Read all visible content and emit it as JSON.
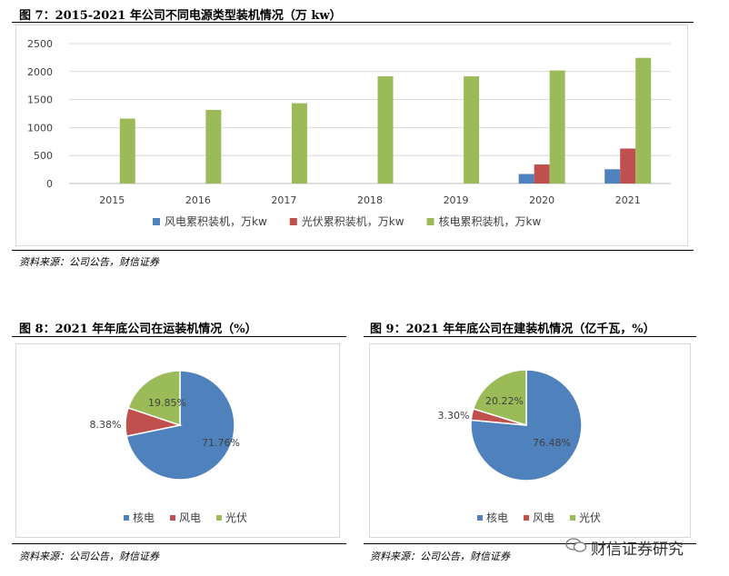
{
  "fig7": {
    "title": "图 7：2015-2021 年公司不同电源类型装机情况（万 kw）",
    "source": "资料来源：公司公告，财信证券"
  },
  "fig8": {
    "title": "图 8：2021 年年底公司在运装机情况（%）",
    "source": "资料来源：公司公告，财信证券"
  },
  "fig9": {
    "title": "图 9：2021 年年底公司在建装机情况（亿千瓦，%）",
    "source": "资料来源：公司公告，财信证券"
  },
  "watermark": "财信证券研究",
  "chart_data": [
    {
      "type": "bar",
      "categories": [
        "2015",
        "2016",
        "2017",
        "2018",
        "2019",
        "2020",
        "2021"
      ],
      "series": [
        {
          "name": "风电累积装机，万kw",
          "color": "#4f81bd",
          "values": [
            null,
            null,
            null,
            null,
            null,
            170,
            255
          ]
        },
        {
          "name": "光伏累积装机，万kw",
          "color": "#c0504d",
          "values": [
            null,
            null,
            null,
            null,
            null,
            340,
            625
          ]
        },
        {
          "name": "核电累积装机，万kw",
          "color": "#9bbb59",
          "values": [
            1160,
            1315,
            1435,
            1915,
            1915,
            2020,
            2245
          ]
        }
      ],
      "yticks": [
        0,
        500,
        1000,
        1500,
        2000,
        2500
      ],
      "ylim": [
        0,
        2500
      ],
      "grid": true,
      "legend_position": "bottom"
    },
    {
      "type": "pie",
      "labels": [
        "核电",
        "风电",
        "光伏"
      ],
      "values": [
        71.76,
        8.38,
        19.85
      ],
      "value_labels": [
        "71.76%",
        "8.38%",
        "19.85%"
      ],
      "colors": [
        "#4f81bd",
        "#c0504d",
        "#9bbb59"
      ],
      "legend_position": "bottom"
    },
    {
      "type": "pie",
      "labels": [
        "核电",
        "风电",
        "光伏"
      ],
      "values": [
        76.48,
        3.3,
        20.22
      ],
      "value_labels": [
        "76.48%",
        "3.30%",
        "20.22%"
      ],
      "colors": [
        "#4f81bd",
        "#c0504d",
        "#9bbb59"
      ],
      "legend_position": "bottom"
    }
  ]
}
